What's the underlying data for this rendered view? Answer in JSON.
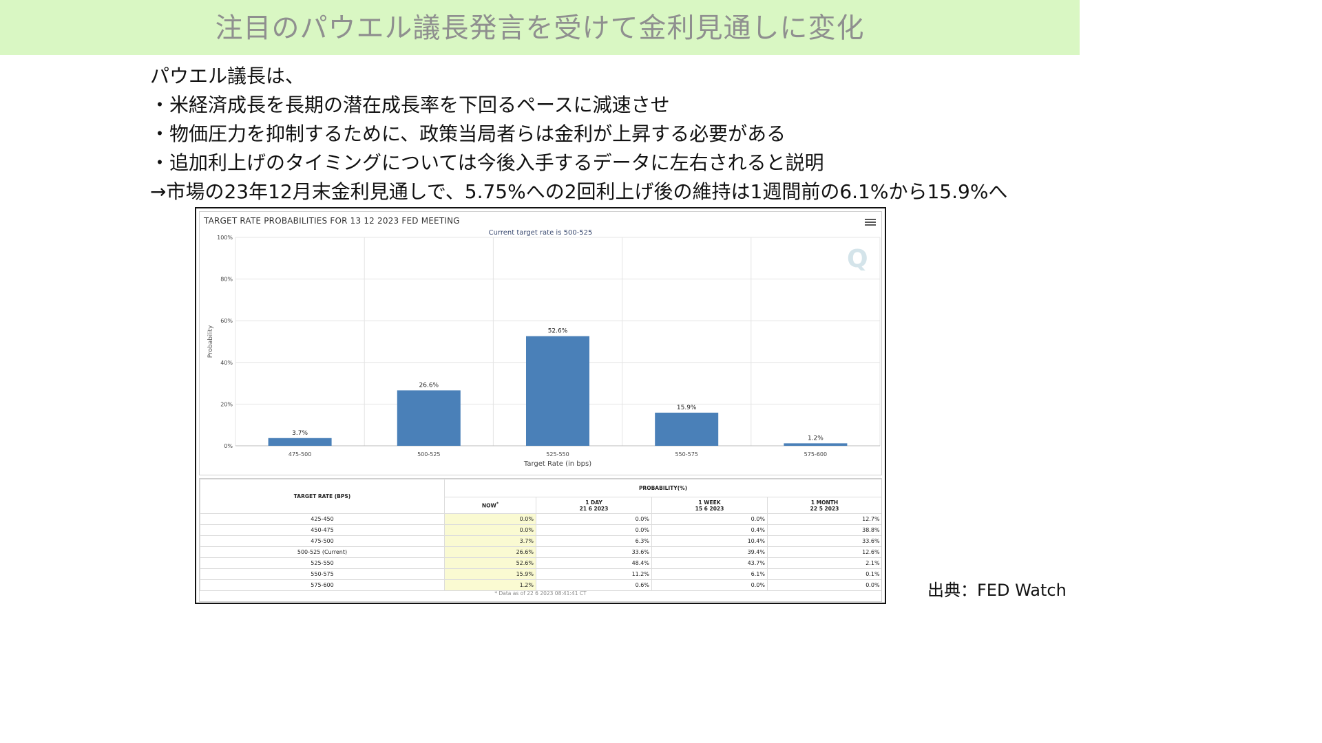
{
  "slide": {
    "title": "注目のパウエル議長発言を受けて金利見通しに変化",
    "lines": [
      "パウエル議長は、",
      "・米経済成長を長期の潜在成長率を下回るペースに減速させ",
      "・物価圧力を抑制するために、政策当局者らは金利が上昇する必要がある",
      "・追加利上げのタイミングについては今後入手するデータに左右されると説明",
      "→市場の23年12月末金利見通しで、5.75%への2回利上げ後の維持は1週間前の6.1%から15.9%へ"
    ],
    "source": "出典：FED Watch"
  },
  "colors": {
    "title_band": "#d9f7c3",
    "bar": "#4a80b8",
    "now_column": "#fafad2"
  },
  "icons": [
    "menu-icon",
    "q-watermark-icon"
  ],
  "chart_data": {
    "type": "bar",
    "title": "TARGET RATE PROBABILITIES FOR 13 12 2023 FED MEETING",
    "subtitle": "Current target rate is 500-525",
    "xlabel": "Target Rate (in bps)",
    "ylabel": "Probability",
    "categories": [
      "475-500",
      "500-525",
      "525-550",
      "550-575",
      "575-600"
    ],
    "values": [
      3.7,
      26.6,
      52.6,
      15.9,
      1.2
    ],
    "data_labels": [
      "3.7%",
      "26.6%",
      "52.6%",
      "15.9%",
      "1.2%"
    ],
    "ylim": [
      0,
      100
    ],
    "yticks": [
      "0%",
      "20%",
      "40%",
      "60%",
      "80%",
      "100%"
    ],
    "grid": true,
    "watermark": "Q"
  },
  "table": {
    "col_rate": "TARGET RATE (BPS)",
    "col_prob": "PROBABILITY(%)",
    "sub_headers": [
      {
        "l1": "NOW",
        "l2": "",
        "mark": "*"
      },
      {
        "l1": "1 DAY",
        "l2": "21 6 2023",
        "mark": ""
      },
      {
        "l1": "1 WEEK",
        "l2": "15 6 2023",
        "mark": ""
      },
      {
        "l1": "1 MONTH",
        "l2": "22 5 2023",
        "mark": ""
      }
    ],
    "rows": [
      {
        "rate": "425-450",
        "now": "0.0%",
        "day": "0.0%",
        "week": "0.0%",
        "month": "12.7%"
      },
      {
        "rate": "450-475",
        "now": "0.0%",
        "day": "0.0%",
        "week": "0.4%",
        "month": "38.8%"
      },
      {
        "rate": "475-500",
        "now": "3.7%",
        "day": "6.3%",
        "week": "10.4%",
        "month": "33.6%"
      },
      {
        "rate": "500-525 (Current)",
        "now": "26.6%",
        "day": "33.6%",
        "week": "39.4%",
        "month": "12.6%"
      },
      {
        "rate": "525-550",
        "now": "52.6%",
        "day": "48.4%",
        "week": "43.7%",
        "month": "2.1%"
      },
      {
        "rate": "550-575",
        "now": "15.9%",
        "day": "11.2%",
        "week": "6.1%",
        "month": "0.1%"
      },
      {
        "rate": "575-600",
        "now": "1.2%",
        "day": "0.6%",
        "week": "0.0%",
        "month": "0.0%"
      }
    ],
    "footnote": "* Data as of 22 6 2023 08:41:41 CT"
  }
}
